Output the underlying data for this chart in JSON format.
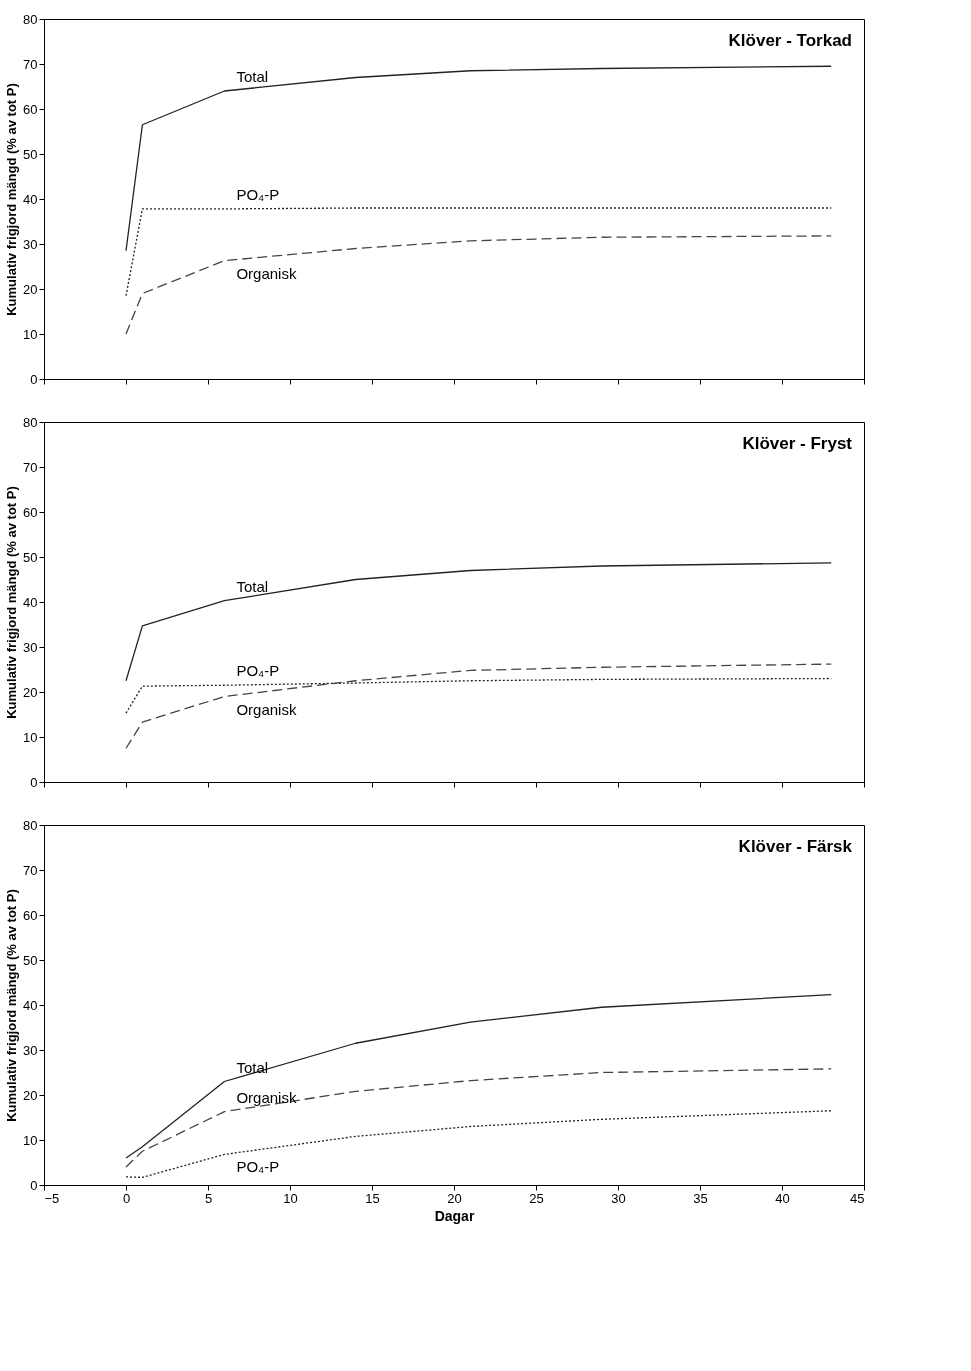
{
  "chart_data": [
    {
      "type": "line",
      "title": "Klöver - Torkad",
      "ylabel": "Kumulativ frigjord mängd (% av tot P)",
      "x": [
        0,
        1,
        6,
        14,
        21,
        29,
        43
      ],
      "xlim": [
        -5,
        45
      ],
      "xticks": [
        -5,
        0,
        5,
        10,
        15,
        20,
        25,
        30,
        35,
        40,
        45
      ],
      "ylim": [
        0,
        80
      ],
      "yticks": [
        0,
        10,
        20,
        30,
        40,
        50,
        60,
        70,
        80
      ],
      "tick_labels": "y",
      "grid": false,
      "series": [
        {
          "name": "Total",
          "color": "#222222",
          "line_style": "solid",
          "values": [
            28.5,
            56.5,
            64,
            67,
            68.5,
            69,
            69.5
          ]
        },
        {
          "name": "PO₄-P",
          "color": "#222222",
          "line_style": "dotted",
          "values": [
            18.5,
            37.8,
            37.8,
            38,
            38,
            38,
            38
          ]
        },
        {
          "name": "Organisk",
          "color": "#444444",
          "line_style": "dashed",
          "values": [
            10,
            19,
            26.3,
            29,
            30.7,
            31.5,
            31.8
          ]
        }
      ]
    },
    {
      "type": "line",
      "title": "Klöver - Fryst",
      "ylabel": "Kumulativ frigjord mängd (% av tot P)",
      "x": [
        0,
        1,
        6,
        14,
        21,
        29,
        43
      ],
      "xlim": [
        -5,
        45
      ],
      "xticks": [
        -5,
        0,
        5,
        10,
        15,
        20,
        25,
        30,
        35,
        40,
        45
      ],
      "ylim": [
        0,
        80
      ],
      "yticks": [
        0,
        10,
        20,
        30,
        40,
        50,
        60,
        70,
        80
      ],
      "tick_labels": "y",
      "grid": false,
      "series": [
        {
          "name": "Total",
          "color": "#222222",
          "line_style": "solid",
          "values": [
            22.5,
            34.7,
            40.3,
            45,
            47,
            48,
            48.7
          ]
        },
        {
          "name": "PO₄-P",
          "color": "#222222",
          "line_style": "dotted",
          "values": [
            15.3,
            21.3,
            21.5,
            22,
            22.5,
            22.8,
            23
          ]
        },
        {
          "name": "Organisk",
          "color": "#444444",
          "line_style": "dashed",
          "values": [
            7.5,
            13.3,
            19,
            22.5,
            24.8,
            25.5,
            26.2
          ]
        }
      ]
    },
    {
      "type": "line",
      "title": "Klöver - Färsk",
      "xlabel": "Dagar",
      "ylabel": "Kumulativ frigjord mängd (% av tot P)",
      "x": [
        0,
        1,
        6,
        14,
        21,
        29,
        43
      ],
      "xlim": [
        -5,
        45
      ],
      "xticks": [
        -5,
        0,
        5,
        10,
        15,
        20,
        25,
        30,
        35,
        40,
        45
      ],
      "ylim": [
        0,
        80
      ],
      "yticks": [
        0,
        10,
        20,
        30,
        40,
        50,
        60,
        70,
        80
      ],
      "grid": false,
      "series": [
        {
          "name": "Total",
          "color": "#222222",
          "line_style": "solid",
          "values": [
            6,
            8.5,
            23,
            31.5,
            36.2,
            39.5,
            42.3
          ]
        },
        {
          "name": "Organisk",
          "color": "#444444",
          "line_style": "dashed",
          "values": [
            4,
            7.5,
            16.3,
            20.8,
            23.2,
            25,
            25.8
          ]
        },
        {
          "name": "PO₄-P",
          "color": "#222222",
          "line_style": "dotted",
          "values": [
            1.8,
            1.7,
            6.8,
            10.8,
            13,
            14.6,
            16.5
          ]
        }
      ]
    }
  ]
}
